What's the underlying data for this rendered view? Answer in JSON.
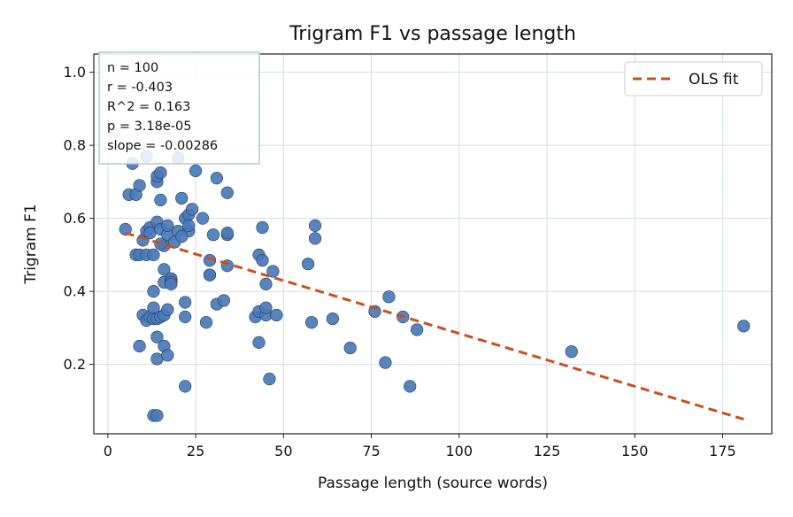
{
  "chart_data": {
    "type": "scatter",
    "title": "Trigram F1 vs passage length",
    "xlabel": "Passage length (source words)",
    "ylabel": "Trigram F1",
    "xlim": [
      -4,
      189
    ],
    "ylim": [
      0.01,
      1.05
    ],
    "xticks": [
      0,
      25,
      50,
      75,
      100,
      125,
      150,
      175
    ],
    "yticks": [
      0.2,
      0.4,
      0.6,
      0.8,
      1.0
    ],
    "xtick_labels": [
      "0",
      "25",
      "50",
      "75",
      "100",
      "125",
      "150",
      "175"
    ],
    "ytick_labels": [
      "0.2",
      "0.4",
      "0.6",
      "0.8",
      "1.0"
    ],
    "grid": true,
    "legend": {
      "position": "top-right",
      "entries": [
        "OLS fit"
      ]
    },
    "colors": {
      "points": "#4a7ab8",
      "point_edge": "#2a3f5f",
      "fit": "#c94f1c",
      "grid": "#d5dde8"
    },
    "stats": [
      "n = 100",
      "r = -0.403",
      "R^2 = 0.163",
      "p = 3.18e-05",
      "slope = -0.00286"
    ],
    "fit_line": {
      "x": [
        5,
        181
      ],
      "y": [
        0.56,
        0.05
      ]
    },
    "series": [
      {
        "x": [
          5,
          6,
          7,
          8,
          8,
          9,
          9,
          10,
          10,
          11,
          11,
          11,
          12,
          12,
          12,
          13,
          13,
          13,
          13,
          14,
          14,
          14,
          14,
          14,
          14,
          15,
          15,
          15,
          15,
          16,
          16,
          16,
          16,
          16,
          17,
          17,
          17,
          17,
          18,
          18,
          18,
          19,
          20,
          21,
          22,
          22,
          22,
          22,
          23,
          23,
          24,
          25,
          27,
          28,
          29,
          29,
          29,
          30,
          31,
          31,
          33,
          34,
          34,
          34,
          34,
          42,
          43,
          43,
          43,
          44,
          44,
          45,
          45,
          45,
          46,
          47,
          48,
          57,
          58,
          59,
          59,
          64,
          69,
          76,
          79,
          80,
          84,
          86,
          88,
          132,
          181,
          13,
          14,
          11,
          18,
          20,
          9,
          15,
          21,
          23
        ],
        "y": [
          0.57,
          0.665,
          0.75,
          0.5,
          0.665,
          0.5,
          0.69,
          0.54,
          0.335,
          0.565,
          0.5,
          0.32,
          0.575,
          0.56,
          0.33,
          0.355,
          0.4,
          0.5,
          0.325,
          0.7,
          0.715,
          0.59,
          0.325,
          0.275,
          0.215,
          0.65,
          0.725,
          0.57,
          0.33,
          0.525,
          0.46,
          0.425,
          0.335,
          0.25,
          0.555,
          0.58,
          0.35,
          0.225,
          0.43,
          0.435,
          0.425,
          0.535,
          0.565,
          0.655,
          0.6,
          0.37,
          0.33,
          0.14,
          0.565,
          0.61,
          0.625,
          0.73,
          0.6,
          0.315,
          0.445,
          0.445,
          0.485,
          0.555,
          0.71,
          0.365,
          0.375,
          0.555,
          0.56,
          0.67,
          0.47,
          0.33,
          0.5,
          0.345,
          0.26,
          0.575,
          0.485,
          0.42,
          0.335,
          0.355,
          0.16,
          0.455,
          0.335,
          0.475,
          0.315,
          0.58,
          0.545,
          0.325,
          0.245,
          0.345,
          0.205,
          0.385,
          0.33,
          0.14,
          0.295,
          0.235,
          0.305,
          0.06,
          0.06,
          0.77,
          0.42,
          0.765,
          0.25,
          0.53,
          0.55,
          0.58
        ]
      }
    ]
  }
}
